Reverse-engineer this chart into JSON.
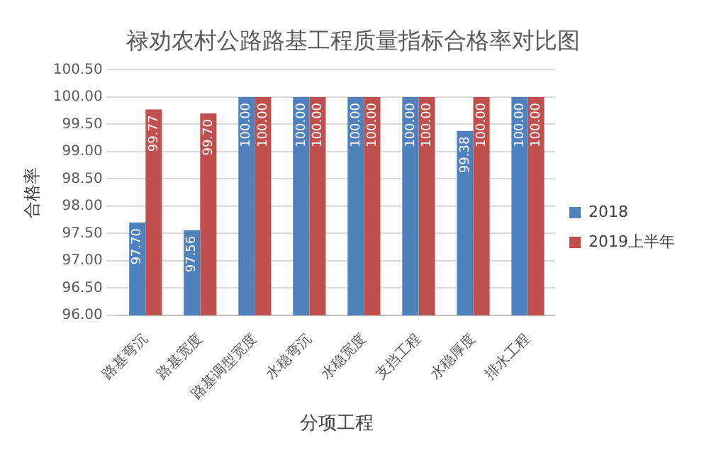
{
  "chart_data": {
    "type": "bar",
    "title": "禄劝农村公路路基工程质量指标合格率对比图",
    "xlabel": "分项工程",
    "ylabel": "合格率",
    "categories": [
      "路基弯沉",
      "路基宽度",
      "路基调型宽度",
      "水稳弯沉",
      "水稳宽度",
      "支挡工程",
      "水稳厚度",
      "排水工程"
    ],
    "series": [
      {
        "name": "2018",
        "color": "#4f81bd",
        "values": [
          97.7,
          97.56,
          100.0,
          100.0,
          100.0,
          100.0,
          99.38,
          100.0
        ],
        "value_labels": [
          "97.70",
          "97.56",
          "100.00",
          "100.00",
          "100.00",
          "100.00",
          "99.38",
          "100.00"
        ]
      },
      {
        "name": "2019上半年",
        "color": "#c0504d",
        "values": [
          99.77,
          99.7,
          100.0,
          100.0,
          100.0,
          100.0,
          100.0,
          100.0
        ],
        "value_labels": [
          "99.77",
          "99.70",
          "100.00",
          "100.00",
          "100.00",
          "100.00",
          "100.00",
          "100.00"
        ]
      }
    ],
    "ylim": [
      96,
      100.5
    ],
    "yticks": [
      {
        "value": 96,
        "label": "96.00"
      },
      {
        "value": 96.5,
        "label": "96.50"
      },
      {
        "value": 97,
        "label": "97.00"
      },
      {
        "value": 97.5,
        "label": "97.50"
      },
      {
        "value": 98,
        "label": "98.00"
      },
      {
        "value": 98.5,
        "label": "98.50"
      },
      {
        "value": 99,
        "label": "99.00"
      },
      {
        "value": 99.5,
        "label": "99.50"
      },
      {
        "value": 100,
        "label": "100.00"
      },
      {
        "value": 100.5,
        "label": "100.50"
      }
    ],
    "grid": "y",
    "legend": "right"
  }
}
